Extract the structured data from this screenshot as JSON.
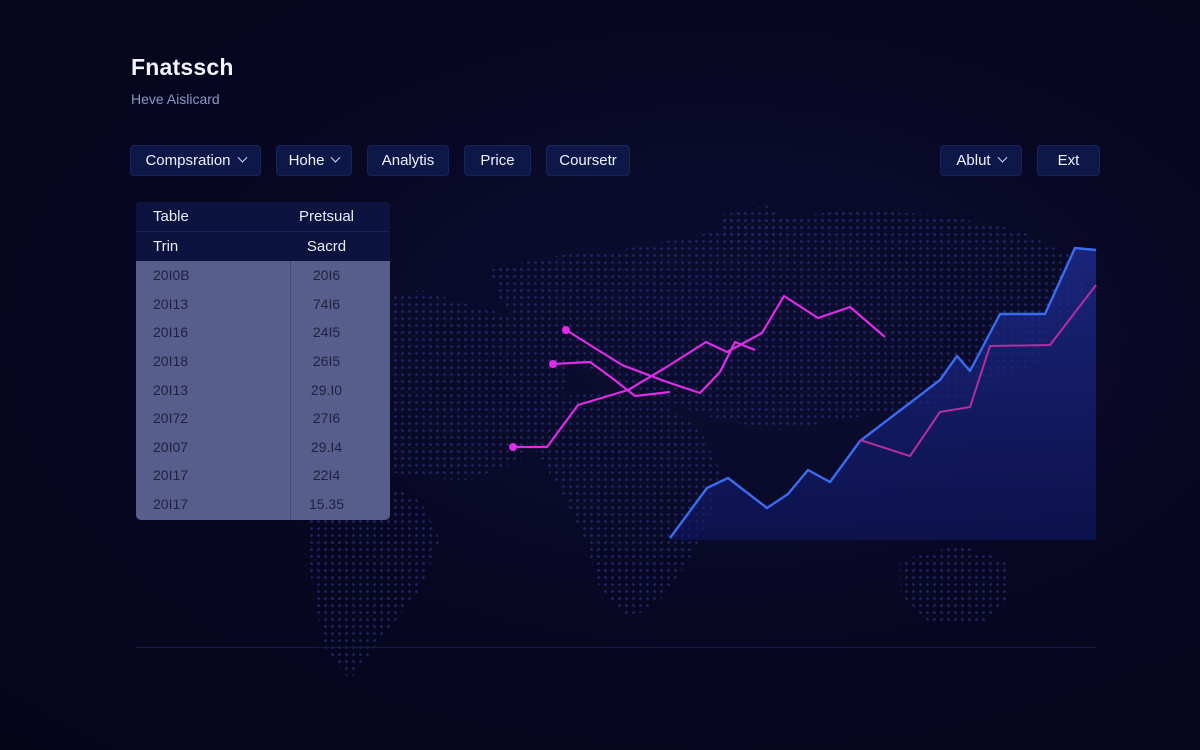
{
  "app": {
    "title": "Fnatssch",
    "subtitle": "Heve Aislicard"
  },
  "nav": {
    "comparison": "Compsration",
    "home": "Hohe",
    "analytics": "Analytis",
    "price": "Price",
    "course": "Coursetr",
    "about": "Ablut",
    "exit": "Ext"
  },
  "table": {
    "headers": [
      "Table",
      "Pretsual"
    ],
    "subheaders": [
      "Trin",
      "Sacrd"
    ],
    "rows": [
      [
        "20I0B",
        "20I6"
      ],
      [
        "20I13",
        "74I6"
      ],
      [
        "20I16",
        "24I5"
      ],
      [
        "20I18",
        "26I5"
      ],
      [
        "20I13",
        "29.I0"
      ],
      [
        "20I72",
        "27I6"
      ],
      [
        "20I07",
        "29.I4"
      ],
      [
        "20I17",
        "22I4"
      ],
      [
        "20I17",
        "15.35"
      ]
    ]
  },
  "chart_data": {
    "type": "line",
    "series": [
      {
        "color": "#e02ce6",
        "values": [
          447,
          447,
          405,
          390,
          368,
          342,
          352,
          333,
          296,
          318,
          307,
          337
        ]
      },
      {
        "color": "#e02ce6",
        "values": [
          330,
          365,
          382,
          393,
          372,
          342,
          350
        ]
      },
      {
        "color": "#e02ce6",
        "values": [
          364,
          362,
          378,
          396,
          392
        ]
      },
      {
        "color": "#3b6cf0",
        "values": [
          538,
          488,
          478,
          508,
          494,
          470,
          482,
          441,
          380,
          356,
          371,
          314,
          314,
          248,
          250
        ]
      },
      {
        "color": "#b12f9e",
        "values": [
          440,
          456,
          412,
          407,
          346,
          345,
          285
        ]
      }
    ],
    "grid": false,
    "legend": "none"
  },
  "colors": {
    "accent_magenta": "#e02ce6",
    "accent_blue": "#3b6cf0",
    "panel": "#0e1848"
  }
}
